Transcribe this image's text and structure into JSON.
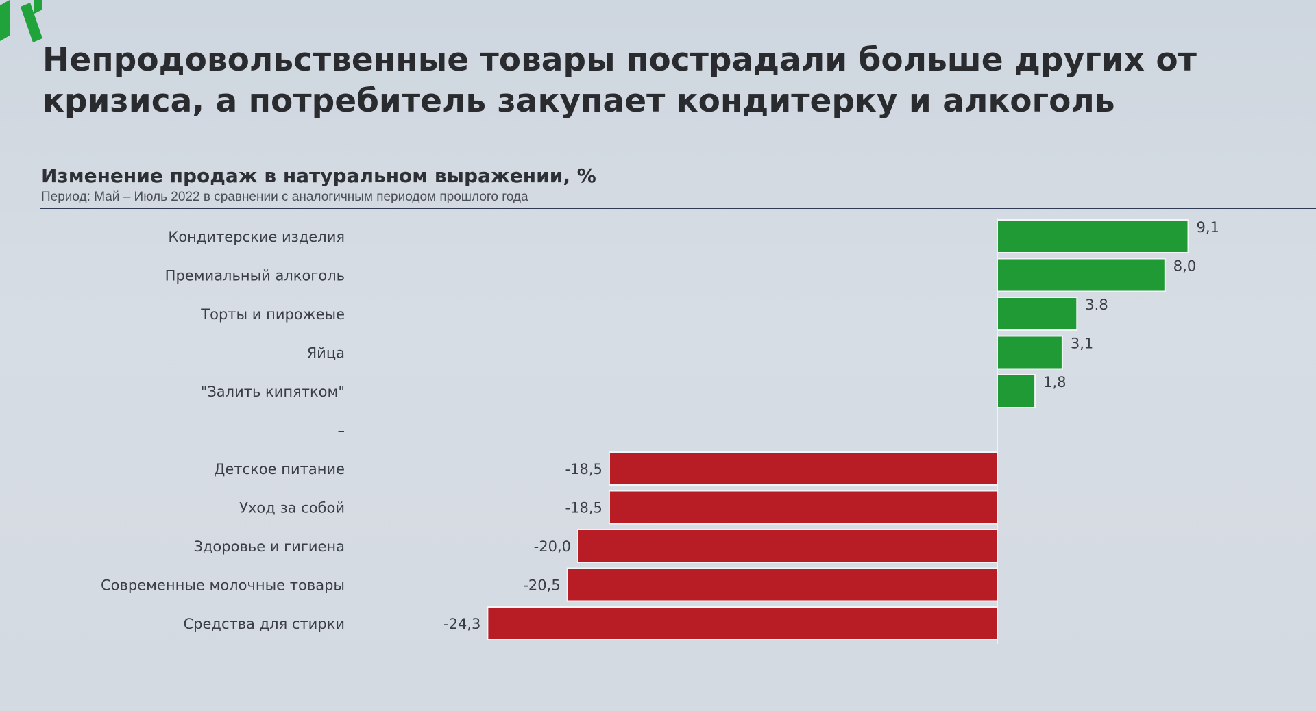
{
  "headline": "Непродовольственные товары пострадали больше других от кризиса, а потребитель закупает кондитерку и алкоголь",
  "colors": {
    "positive": "#1f9a34",
    "negative": "#b81c24",
    "logo": "#1fa33a"
  },
  "icons": {
    "logo": "green-stripes-logo-icon"
  },
  "chart_data": {
    "type": "bar",
    "orientation": "horizontal",
    "title": "Изменение продаж в натуральном выражении, %",
    "subtitle": "Период: Май – Июль 2022 в сравнении с аналогичным периодом прошлого года",
    "categories": [
      "Кондитерские изделия",
      "Премиальный алкоголь",
      "Торты и пирожеые",
      "Яйца",
      "\"Залить кипятком\"",
      "–",
      "Детское питание",
      "Уход за собой",
      "Здоровье и гигиена",
      "Современные молочные товары",
      "Средства для стирки"
    ],
    "values": [
      9.1,
      8.0,
      3.8,
      3.1,
      1.8,
      null,
      -18.5,
      -18.5,
      -20.0,
      -20.5,
      -24.3
    ],
    "value_labels": [
      "9,1",
      "8,0",
      "3.8",
      "3,1",
      "1,8",
      "",
      "-18,5",
      "-18,5",
      "-20,0",
      "-20,5",
      "-24,3"
    ],
    "xlim": [
      -24.3,
      9.1
    ],
    "grid": false,
    "legend": "none"
  }
}
